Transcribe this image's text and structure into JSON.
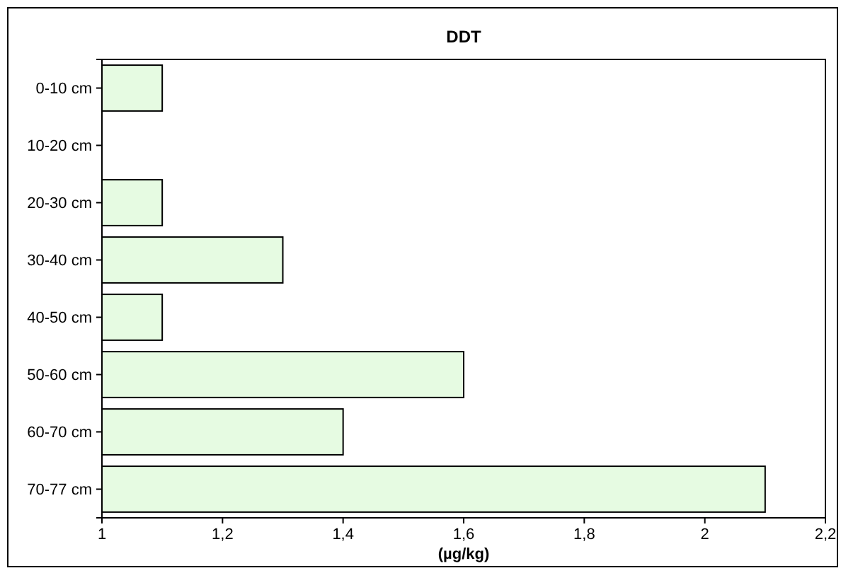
{
  "chart_data": {
    "type": "bar",
    "orientation": "horizontal",
    "title": "DDT",
    "xlabel": "(µg/kg)",
    "categories": [
      "0-10 cm",
      "10-20 cm",
      "20-30 cm",
      "30-40 cm",
      "40-50 cm",
      "50-60 cm",
      "60-70 cm",
      "70-77 cm"
    ],
    "values": [
      1.1,
      null,
      1.1,
      1.3,
      1.1,
      1.6,
      1.4,
      2.1
    ],
    "color": "#e6fbe2",
    "xlim": [
      1,
      2.2
    ],
    "xticks": [
      {
        "value": 1,
        "label": "1"
      },
      {
        "value": 1.2,
        "label": "1,2"
      },
      {
        "value": 1.4,
        "label": "1,4"
      },
      {
        "value": 1.6,
        "label": "1,6"
      },
      {
        "value": 1.8,
        "label": "1,8"
      },
      {
        "value": 2,
        "label": "2"
      },
      {
        "value": 2.2,
        "label": "2,2"
      }
    ],
    "grid": false
  }
}
